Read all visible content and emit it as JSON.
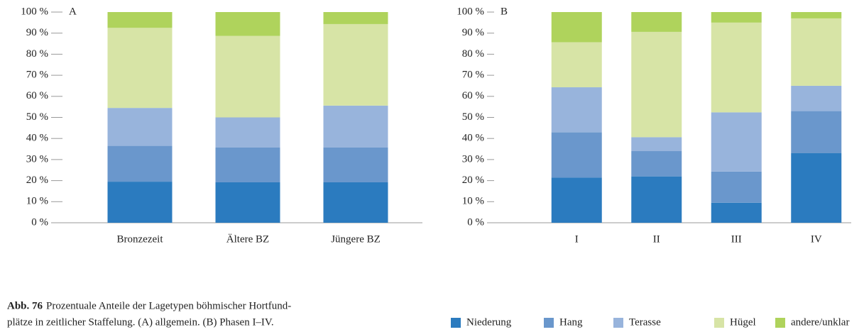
{
  "chart_data": [
    {
      "type": "stacked_bar",
      "panel_label": "A",
      "categories": [
        "Bronzezeit",
        "Ältere BZ",
        "Jüngere BZ"
      ],
      "series": [
        {
          "name": "Niederung",
          "color": "#2b7bbf",
          "values": [
            19.5,
            19.2,
            19.2
          ]
        },
        {
          "name": "Hang",
          "color": "#6a97cc",
          "values": [
            17,
            16.5,
            16.5
          ]
        },
        {
          "name": "Terasse",
          "color": "#98b4dc",
          "values": [
            18,
            14.3,
            19.9
          ]
        },
        {
          "name": "Hügel",
          "color": "#d7e4a6",
          "values": [
            38,
            38.7,
            38.7
          ]
        },
        {
          "name": "andere/unklar",
          "color": "#afd35c",
          "values": [
            7.5,
            11.3,
            5.7
          ]
        }
      ],
      "ylim": [
        0,
        100
      ],
      "yticks": [
        {
          "value": 0,
          "label": "0 %"
        },
        {
          "value": 10,
          "label": "10 %"
        },
        {
          "value": 20,
          "label": "20 %"
        },
        {
          "value": 30,
          "label": "30 %"
        },
        {
          "value": 40,
          "label": "40 %"
        },
        {
          "value": 50,
          "label": "50 %"
        },
        {
          "value": 60,
          "label": "60 %"
        },
        {
          "value": 70,
          "label": "70 %"
        },
        {
          "value": 80,
          "label": "80 %"
        },
        {
          "value": 90,
          "label": "90 %"
        },
        {
          "value": 100,
          "label": "100 %"
        }
      ],
      "grid": false
    },
    {
      "type": "stacked_bar",
      "panel_label": "B",
      "categories": [
        "I",
        "II",
        "III",
        "IV"
      ],
      "series": [
        {
          "name": "Niederung",
          "color": "#2b7bbf",
          "values": [
            21.4,
            22,
            9.5,
            33
          ]
        },
        {
          "name": "Hang",
          "color": "#6a97cc",
          "values": [
            21.5,
            12,
            14.8,
            20
          ]
        },
        {
          "name": "Terasse",
          "color": "#98b4dc",
          "values": [
            21.4,
            6.6,
            28.1,
            12
          ]
        },
        {
          "name": "Hügel",
          "color": "#d7e4a6",
          "values": [
            21.4,
            50,
            42.6,
            32
          ]
        },
        {
          "name": "andere/unklar",
          "color": "#afd35c",
          "values": [
            14.3,
            9.4,
            5,
            3
          ]
        }
      ],
      "ylim": [
        0,
        100
      ],
      "yticks": [
        {
          "value": 0,
          "label": "0 %"
        },
        {
          "value": 10,
          "label": "10 %"
        },
        {
          "value": 20,
          "label": "20 %"
        },
        {
          "value": 30,
          "label": "30 %"
        },
        {
          "value": 40,
          "label": "40 %"
        },
        {
          "value": 50,
          "label": "50 %"
        },
        {
          "value": 60,
          "label": "60 %"
        },
        {
          "value": 70,
          "label": "70 %"
        },
        {
          "value": 80,
          "label": "80 %"
        },
        {
          "value": 90,
          "label": "90 %"
        },
        {
          "value": 100,
          "label": "100 %"
        }
      ],
      "grid": false,
      "legend": "bottom"
    }
  ],
  "caption": {
    "label": "Abb. 76",
    "line1": "Prozentuale Anteile der Lagetypen böhmischer Hortfund-",
    "line2": "plätze in zeitlicher Staffelung. (A) allgemein. (B) Phasen I–IV."
  }
}
